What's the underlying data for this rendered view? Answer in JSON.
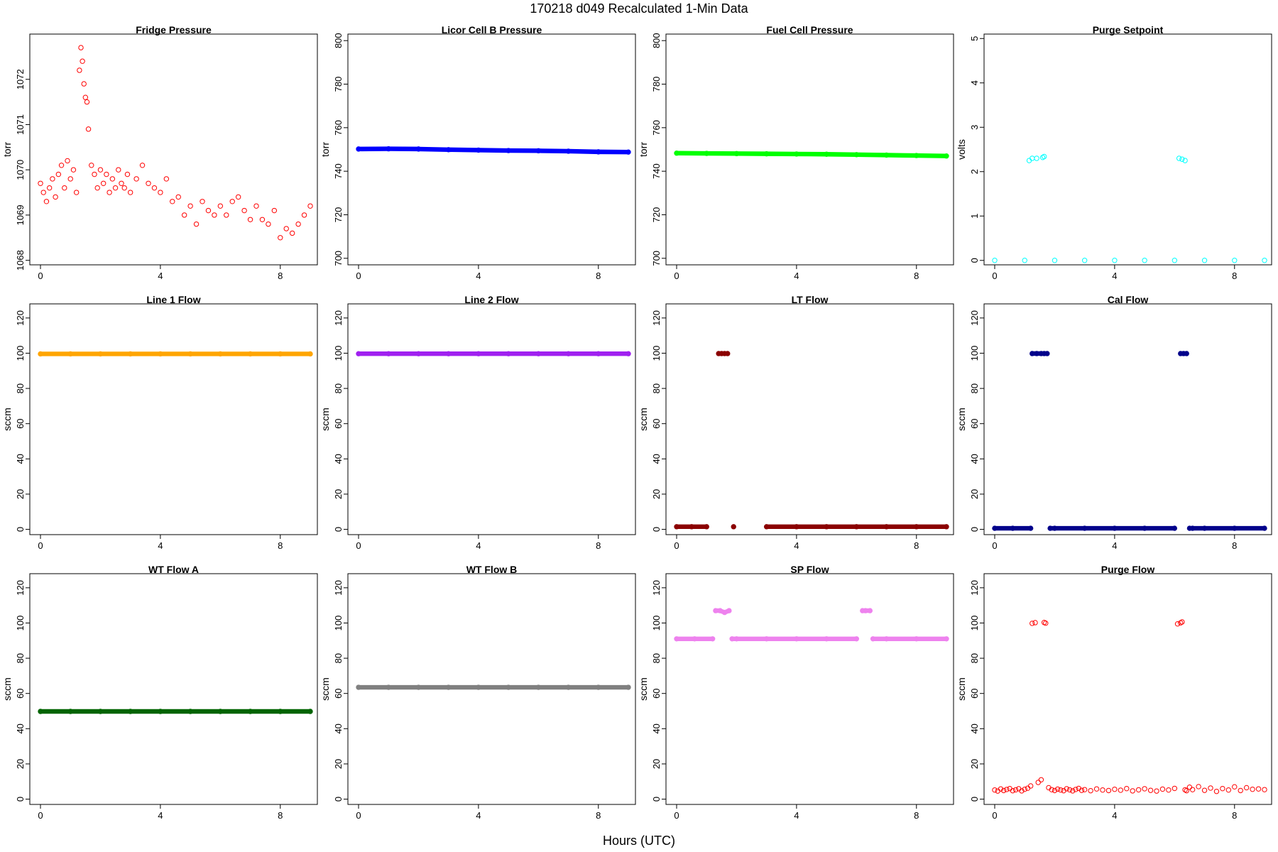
{
  "figure": {
    "title": "170218    d049    Recalculated 1-Min Data",
    "xlabel": "Hours (UTC)"
  },
  "chart_data": [
    {
      "type": "scatter",
      "title": "Fridge Pressure",
      "ylabel": "torr",
      "color": "#ff0000",
      "marker": "open",
      "xlim": [
        0,
        9
      ],
      "ylim": [
        1067.9,
        1073.0
      ],
      "yticks": [
        1068,
        1069,
        1070,
        1071,
        1072
      ],
      "xticks": [
        0,
        4,
        8
      ],
      "x": [
        0.0,
        0.1,
        0.2,
        0.3,
        0.4,
        0.5,
        0.6,
        0.7,
        0.8,
        0.9,
        1.0,
        1.1,
        1.2,
        1.3,
        1.35,
        1.4,
        1.45,
        1.5,
        1.55,
        1.6,
        1.7,
        1.8,
        1.9,
        2.0,
        2.1,
        2.2,
        2.3,
        2.4,
        2.5,
        2.6,
        2.7,
        2.8,
        2.9,
        3.0,
        3.2,
        3.4,
        3.6,
        3.8,
        4.0,
        4.2,
        4.4,
        4.6,
        4.8,
        5.0,
        5.2,
        5.4,
        5.6,
        5.8,
        6.0,
        6.2,
        6.4,
        6.6,
        6.8,
        7.0,
        7.2,
        7.4,
        7.6,
        7.8,
        8.0,
        8.2,
        8.4,
        8.6,
        8.8,
        9.0
      ],
      "y": [
        1069.7,
        1069.5,
        1069.3,
        1069.6,
        1069.8,
        1069.4,
        1069.9,
        1070.1,
        1069.6,
        1070.2,
        1069.8,
        1070.0,
        1069.5,
        1072.2,
        1072.7,
        1072.4,
        1071.9,
        1071.6,
        1071.5,
        1070.9,
        1070.1,
        1069.9,
        1069.6,
        1070.0,
        1069.7,
        1069.9,
        1069.5,
        1069.8,
        1069.6,
        1070.0,
        1069.7,
        1069.6,
        1069.9,
        1069.5,
        1069.8,
        1070.1,
        1069.7,
        1069.6,
        1069.5,
        1069.8,
        1069.3,
        1069.4,
        1069.0,
        1069.2,
        1068.8,
        1069.3,
        1069.1,
        1069.0,
        1069.2,
        1069.0,
        1069.3,
        1069.4,
        1069.1,
        1068.9,
        1069.2,
        1068.9,
        1068.8,
        1069.1,
        1068.5,
        1068.7,
        1068.6,
        1068.8,
        1069.0,
        1069.2
      ]
    },
    {
      "type": "scatter",
      "title": "Licor Cell B Pressure",
      "ylabel": "torr",
      "color": "#0000ff",
      "marker": "filled",
      "xlim": [
        0,
        9
      ],
      "ylim": [
        697,
        803
      ],
      "yticks": [
        700,
        720,
        740,
        760,
        780,
        800
      ],
      "xticks": [
        0,
        4,
        8
      ],
      "x": [
        0,
        1,
        2,
        3,
        4,
        5,
        6,
        7,
        8,
        9
      ],
      "y": [
        750.2,
        750.3,
        750.2,
        749.9,
        749.7,
        749.5,
        749.4,
        749.2,
        748.9,
        748.8
      ]
    },
    {
      "type": "scatter",
      "title": "Fuel Cell Pressure",
      "ylabel": "torr",
      "color": "#00ff00",
      "marker": "filled",
      "xlim": [
        0,
        9
      ],
      "ylim": [
        697,
        803
      ],
      "yticks": [
        700,
        720,
        740,
        760,
        780,
        800
      ],
      "xticks": [
        0,
        4,
        8
      ],
      "x": [
        0,
        1,
        2,
        3,
        4,
        5,
        6,
        7,
        8,
        9
      ],
      "y": [
        748.3,
        748.2,
        748.1,
        748.0,
        747.9,
        747.8,
        747.6,
        747.4,
        747.2,
        747.0
      ]
    },
    {
      "type": "scatter",
      "title": "Purge Setpoint",
      "ylabel": "volts",
      "color": "#00ffff",
      "marker": "open",
      "xlim": [
        0,
        9
      ],
      "ylim": [
        -0.1,
        5.1
      ],
      "yticks": [
        0,
        1,
        2,
        3,
        4,
        5
      ],
      "xticks": [
        0,
        4,
        8
      ],
      "x": [
        0,
        1,
        1.15,
        1.25,
        1.4,
        1.6,
        1.65,
        2,
        3,
        4,
        5,
        6,
        6.15,
        6.25,
        6.35,
        7,
        8,
        9
      ],
      "y": [
        0,
        0,
        2.25,
        2.3,
        2.3,
        2.32,
        2.34,
        0,
        0,
        0,
        0,
        0,
        2.3,
        2.28,
        2.25,
        0,
        0,
        0
      ]
    },
    {
      "type": "scatter",
      "title": "Line 1 Flow",
      "ylabel": "sccm",
      "color": "#ffa500",
      "marker": "filled",
      "xlim": [
        0,
        9
      ],
      "ylim": [
        -3,
        128
      ],
      "yticks": [
        0,
        20,
        40,
        60,
        80,
        100,
        120
      ],
      "xticks": [
        0,
        4,
        8
      ],
      "x": [
        0,
        1,
        2,
        3,
        4,
        5,
        6,
        7,
        8,
        9
      ],
      "y": [
        99.6,
        99.6,
        99.6,
        99.6,
        99.6,
        99.6,
        99.6,
        99.6,
        99.6,
        99.6
      ]
    },
    {
      "type": "scatter",
      "title": "Line 2 Flow",
      "ylabel": "sccm",
      "color": "#a020f0",
      "marker": "filled",
      "xlim": [
        0,
        9
      ],
      "ylim": [
        -3,
        128
      ],
      "yticks": [
        0,
        20,
        40,
        60,
        80,
        100,
        120
      ],
      "xticks": [
        0,
        4,
        8
      ],
      "x": [
        0,
        1,
        2,
        3,
        4,
        5,
        6,
        7,
        8,
        9
      ],
      "y": [
        99.7,
        99.7,
        99.7,
        99.7,
        99.7,
        99.7,
        99.7,
        99.7,
        99.7,
        99.7
      ]
    },
    {
      "type": "scatter",
      "title": "LT Flow",
      "ylabel": "sccm",
      "color": "#8b0000",
      "marker": "filled",
      "xlim": [
        0,
        9
      ],
      "ylim": [
        -3,
        128
      ],
      "yticks": [
        0,
        20,
        40,
        60,
        80,
        100,
        120
      ],
      "xticks": [
        0,
        4,
        8
      ],
      "x": [
        0,
        0.5,
        1.0,
        1.4,
        1.5,
        1.6,
        1.7,
        1.9,
        3,
        4,
        5,
        6,
        7,
        8,
        9
      ],
      "y": [
        1.5,
        1.5,
        1.5,
        99.8,
        99.8,
        99.8,
        99.8,
        1.5,
        1.5,
        1.5,
        1.5,
        1.5,
        1.5,
        1.5,
        1.5
      ]
    },
    {
      "type": "scatter",
      "title": "Cal Flow",
      "ylabel": "sccm",
      "color": "#00008b",
      "marker": "filled",
      "xlim": [
        0,
        9
      ],
      "ylim": [
        -3,
        128
      ],
      "yticks": [
        0,
        20,
        40,
        60,
        80,
        100,
        120
      ],
      "xticks": [
        0,
        4,
        8
      ],
      "x": [
        0,
        0.6,
        1.2,
        1.25,
        1.4,
        1.55,
        1.65,
        1.75,
        1.85,
        2,
        3,
        4,
        5,
        6,
        6.2,
        6.3,
        6.4,
        6.5,
        6.6,
        7,
        8,
        9
      ],
      "y": [
        0.6,
        0.6,
        0.6,
        99.8,
        99.8,
        99.8,
        99.8,
        99.8,
        0.6,
        0.6,
        0.6,
        0.6,
        0.6,
        0.6,
        99.8,
        99.8,
        99.8,
        0.6,
        0.6,
        0.6,
        0.6,
        0.6
      ]
    },
    {
      "type": "scatter",
      "title": "WT Flow A",
      "ylabel": "sccm",
      "color": "#006400",
      "marker": "filled",
      "xlim": [
        0,
        9
      ],
      "ylim": [
        -3,
        128
      ],
      "yticks": [
        0,
        20,
        40,
        60,
        80,
        100,
        120
      ],
      "xticks": [
        0,
        4,
        8
      ],
      "x": [
        0,
        1,
        2,
        3,
        4,
        5,
        6,
        7,
        8,
        9
      ],
      "y": [
        49.8,
        49.8,
        49.8,
        49.8,
        49.8,
        49.8,
        49.8,
        49.8,
        49.8,
        49.8
      ]
    },
    {
      "type": "scatter",
      "title": "WT Flow B",
      "ylabel": "sccm",
      "color": "#808080",
      "marker": "filled",
      "xlim": [
        0,
        9
      ],
      "ylim": [
        -3,
        128
      ],
      "yticks": [
        0,
        20,
        40,
        60,
        80,
        100,
        120
      ],
      "xticks": [
        0,
        4,
        8
      ],
      "x": [
        0,
        1,
        2,
        3,
        4,
        5,
        6,
        7,
        8,
        9
      ],
      "y": [
        63.5,
        63.5,
        63.5,
        63.5,
        63.5,
        63.5,
        63.5,
        63.5,
        63.5,
        63.5
      ]
    },
    {
      "type": "scatter",
      "title": "SP Flow",
      "ylabel": "sccm",
      "color": "#ee82ee",
      "marker": "filled",
      "xlim": [
        0,
        9
      ],
      "ylim": [
        -3,
        128
      ],
      "yticks": [
        0,
        20,
        40,
        60,
        80,
        100,
        120
      ],
      "xticks": [
        0,
        4,
        8
      ],
      "x": [
        0,
        0.6,
        1.2,
        1.3,
        1.45,
        1.6,
        1.75,
        1.85,
        2,
        3,
        4,
        5,
        6,
        6.2,
        6.3,
        6.45,
        6.55,
        7,
        8,
        9
      ],
      "y": [
        91,
        91,
        91,
        107,
        107,
        106,
        107,
        91,
        91,
        91,
        91,
        91,
        91,
        107,
        107,
        107,
        91,
        91,
        91,
        91
      ]
    },
    {
      "type": "scatter",
      "title": "Purge Flow",
      "ylabel": "sccm",
      "color": "#ff0000",
      "marker": "open",
      "xlim": [
        0,
        9
      ],
      "ylim": [
        -3,
        128
      ],
      "yticks": [
        0,
        20,
        40,
        60,
        80,
        100,
        120
      ],
      "xticks": [
        0,
        4,
        8
      ],
      "x": [
        0.0,
        0.1,
        0.2,
        0.3,
        0.4,
        0.5,
        0.6,
        0.7,
        0.8,
        0.9,
        1.0,
        1.1,
        1.2,
        1.25,
        1.35,
        1.45,
        1.55,
        1.65,
        1.7,
        1.8,
        1.9,
        2.0,
        2.1,
        2.2,
        2.3,
        2.4,
        2.5,
        2.6,
        2.7,
        2.8,
        2.9,
        3.0,
        3.2,
        3.4,
        3.6,
        3.8,
        4.0,
        4.2,
        4.4,
        4.6,
        4.8,
        5.0,
        5.2,
        5.4,
        5.6,
        5.8,
        6.0,
        6.1,
        6.2,
        6.25,
        6.35,
        6.4,
        6.5,
        6.6,
        6.8,
        7.0,
        7.2,
        7.4,
        7.6,
        7.8,
        8.0,
        8.2,
        8.4,
        8.6,
        8.8,
        9.0
      ],
      "y": [
        5.2,
        4.6,
        5.8,
        4.9,
        5.5,
        6.0,
        4.8,
        5.3,
        5.9,
        4.7,
        5.6,
        6.2,
        7.5,
        99.8,
        100.2,
        9.5,
        11.0,
        100.3,
        99.9,
        6.5,
        5.4,
        4.9,
        5.7,
        5.2,
        4.8,
        5.9,
        5.3,
        4.7,
        5.5,
        6.1,
        5.0,
        5.4,
        4.8,
        5.8,
        5.2,
        4.9,
        5.6,
        5.1,
        6.0,
        4.7,
        5.3,
        5.9,
        5.0,
        4.6,
        5.7,
        5.2,
        6.1,
        99.5,
        100.1,
        100.6,
        5.3,
        4.8,
        6.8,
        5.4,
        7.1,
        5.0,
        6.3,
        4.4,
        6.0,
        5.2,
        7.0,
        4.9,
        6.5,
        5.6,
        5.8,
        5.4
      ]
    }
  ]
}
